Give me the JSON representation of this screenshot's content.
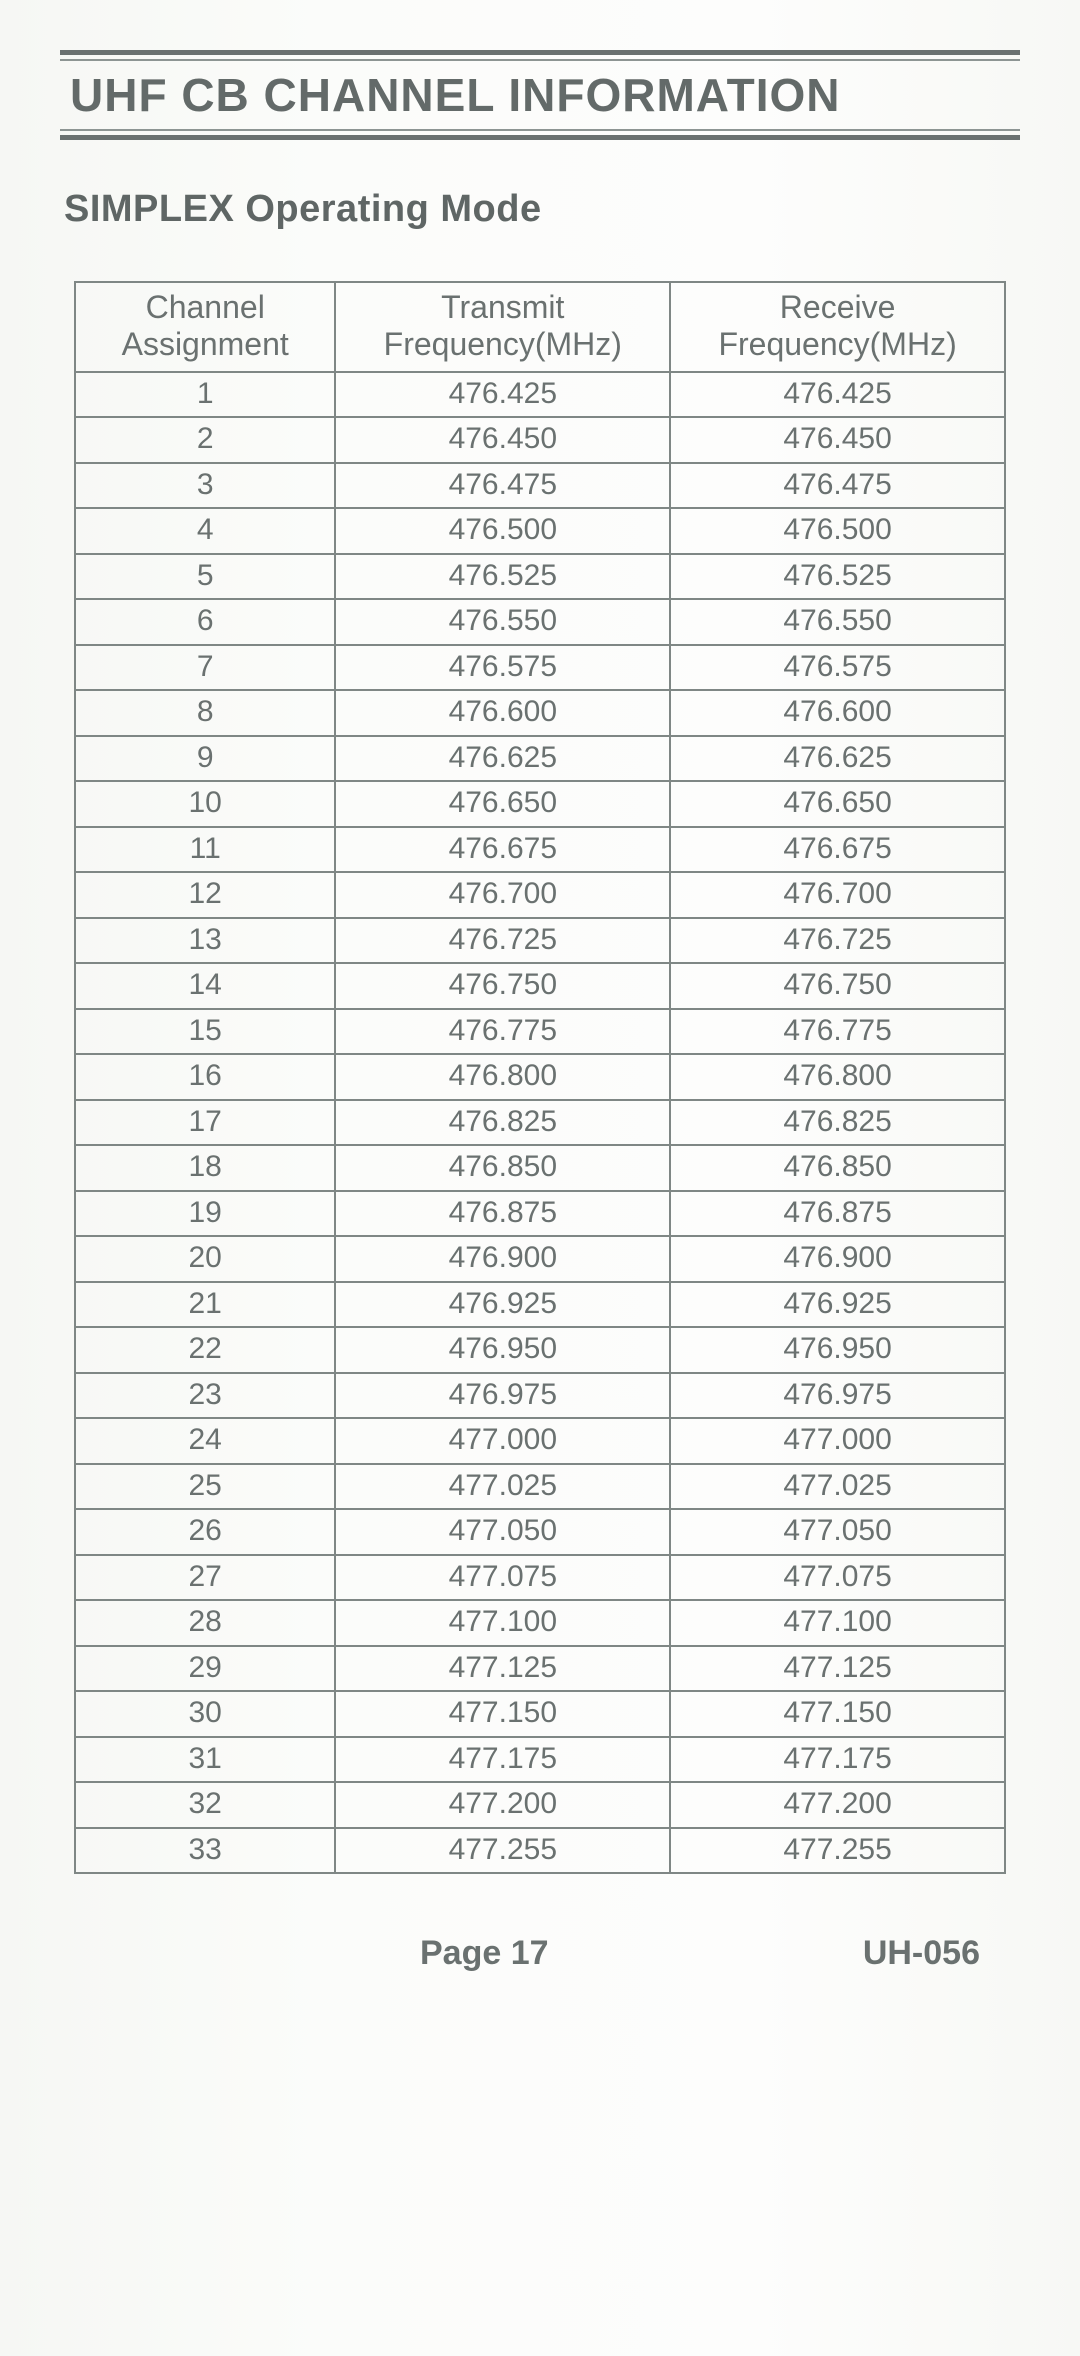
{
  "colors": {
    "text": "#6a7170",
    "rule_dark": "#6a7170",
    "rule_light": "#8d9593",
    "border": "#7f8785",
    "background_tint": "#fafbf8"
  },
  "typography": {
    "title_fontsize": 46,
    "subheading_fontsize": 38,
    "header_cell_fontsize": 32,
    "data_cell_fontsize": 30,
    "footer_fontsize": 34,
    "font_family": "Arial"
  },
  "title": "UHF CB CHANNEL INFORMATION",
  "subheading": "SIMPLEX Operating Mode",
  "table": {
    "type": "table",
    "columns": [
      {
        "line1": "Channel",
        "line2": "Assignment",
        "width_pct": 28,
        "align": "center"
      },
      {
        "line1": "Transmit",
        "line2": "Frequency(MHz)",
        "width_pct": 36,
        "align": "center"
      },
      {
        "line1": "Receive",
        "line2": "Frequency(MHz)",
        "width_pct": 36,
        "align": "center"
      }
    ],
    "rows": [
      [
        "1",
        "476.425",
        "476.425"
      ],
      [
        "2",
        "476.450",
        "476.450"
      ],
      [
        "3",
        "476.475",
        "476.475"
      ],
      [
        "4",
        "476.500",
        "476.500"
      ],
      [
        "5",
        "476.525",
        "476.525"
      ],
      [
        "6",
        "476.550",
        "476.550"
      ],
      [
        "7",
        "476.575",
        "476.575"
      ],
      [
        "8",
        "476.600",
        "476.600"
      ],
      [
        "9",
        "476.625",
        "476.625"
      ],
      [
        "10",
        "476.650",
        "476.650"
      ],
      [
        "11",
        "476.675",
        "476.675"
      ],
      [
        "12",
        "476.700",
        "476.700"
      ],
      [
        "13",
        "476.725",
        "476.725"
      ],
      [
        "14",
        "476.750",
        "476.750"
      ],
      [
        "15",
        "476.775",
        "476.775"
      ],
      [
        "16",
        "476.800",
        "476.800"
      ],
      [
        "17",
        "476.825",
        "476.825"
      ],
      [
        "18",
        "476.850",
        "476.850"
      ],
      [
        "19",
        "476.875",
        "476.875"
      ],
      [
        "20",
        "476.900",
        "476.900"
      ],
      [
        "21",
        "476.925",
        "476.925"
      ],
      [
        "22",
        "476.950",
        "476.950"
      ],
      [
        "23",
        "476.975",
        "476.975"
      ],
      [
        "24",
        "477.000",
        "477.000"
      ],
      [
        "25",
        "477.025",
        "477.025"
      ],
      [
        "26",
        "477.050",
        "477.050"
      ],
      [
        "27",
        "477.075",
        "477.075"
      ],
      [
        "28",
        "477.100",
        "477.100"
      ],
      [
        "29",
        "477.125",
        "477.125"
      ],
      [
        "30",
        "477.150",
        "477.150"
      ],
      [
        "31",
        "477.175",
        "477.175"
      ],
      [
        "32",
        "477.200",
        "477.200"
      ],
      [
        "33",
        "477.255",
        "477.255"
      ]
    ]
  },
  "footer": {
    "page_label": "Page 17",
    "doc_id": "UH-056"
  }
}
